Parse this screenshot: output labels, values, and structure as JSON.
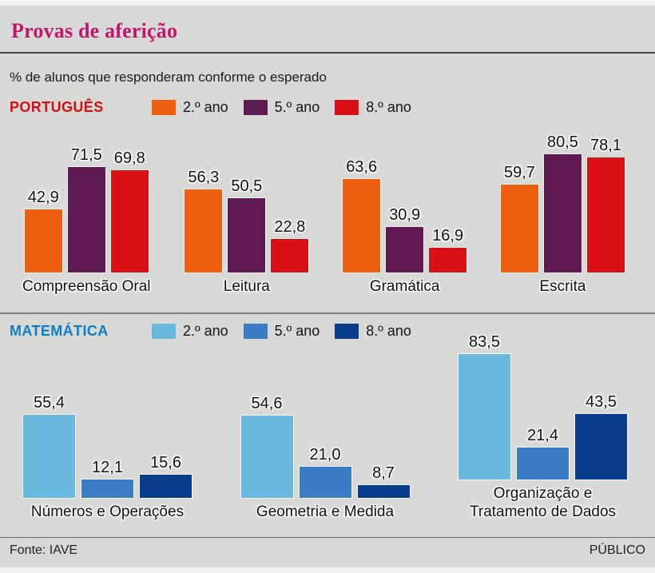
{
  "header": {
    "title": "Provas de aferição",
    "title_color": "#c3156a"
  },
  "subtitle": "% de alunos que responderam conforme o esperado",
  "footer": {
    "source": "Fonte: IAVE",
    "brand": "PÚBLICO"
  },
  "chart_data": [
    {
      "type": "bar",
      "section": "PORTUGUÊS",
      "section_color": "#d30f14",
      "unit": "%",
      "ylim": [
        0,
        100
      ],
      "grid": false,
      "legend_position": "top",
      "value_labels": "above-bars, comma decimal",
      "categories": [
        "Compreensão Oral",
        "Leitura",
        "Gramática",
        "Escrita"
      ],
      "series": [
        {
          "name": "2.º ano",
          "color": "#ee5f0f",
          "values": [
            42.9,
            56.3,
            63.6,
            59.7
          ]
        },
        {
          "name": "5.º ano",
          "color": "#5f1a51",
          "values": [
            71.5,
            50.5,
            30.9,
            80.5
          ]
        },
        {
          "name": "8.º ano",
          "color": "#da1114",
          "values": [
            69.8,
            22.8,
            16.9,
            78.1
          ]
        }
      ]
    },
    {
      "type": "bar",
      "section": "MATEMÁTICA",
      "section_color": "#0f7dc2",
      "unit": "%",
      "ylim": [
        0,
        100
      ],
      "grid": false,
      "legend_position": "top",
      "value_labels": "above-bars, comma decimal",
      "categories": [
        "Números e Operações",
        "Geometria e Medida",
        "Organização e\nTratamento de Dados"
      ],
      "series": [
        {
          "name": "2.º ano",
          "color": "#69b8de",
          "values": [
            55.4,
            54.6,
            83.5
          ]
        },
        {
          "name": "5.º ano",
          "color": "#3a7dc4",
          "values": [
            12.1,
            21.0,
            21.4
          ]
        },
        {
          "name": "8.º ano",
          "color": "#0b3d8d",
          "values": [
            15.6,
            8.7,
            43.5
          ]
        }
      ]
    }
  ]
}
